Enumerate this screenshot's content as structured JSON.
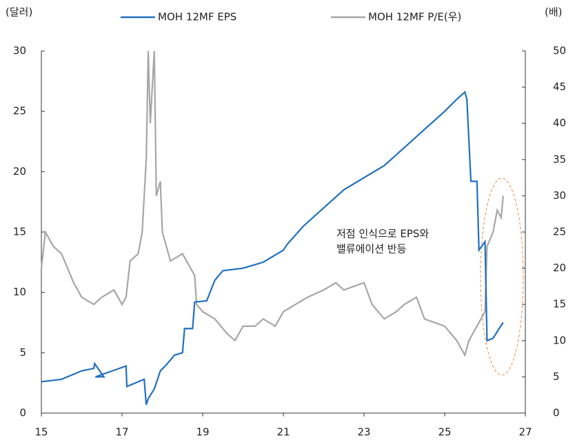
{
  "chart_data": {
    "type": "line",
    "y_label": "(달러)",
    "y2_label": "(배)",
    "annotation": [
      "저점 인식으로 EPS와",
      "밸류에이션 반등"
    ],
    "xlim": [
      15,
      27
    ],
    "xticks": [
      15,
      17,
      19,
      21,
      23,
      25,
      27
    ],
    "ylim": [
      0,
      30
    ],
    "yticks": [
      0,
      5,
      10,
      15,
      20,
      25,
      30
    ],
    "y2lim": [
      0,
      50
    ],
    "y2ticks": [
      0,
      5,
      10,
      15,
      20,
      25,
      30,
      35,
      40,
      45,
      50
    ],
    "series": [
      {
        "name": "MOH 12MF EPS",
        "color": "#1f6fc0",
        "axis": "y",
        "x": [
          15.0,
          15.5,
          16.0,
          16.3,
          16.32,
          16.55,
          16.34,
          17.1,
          17.12,
          17.55,
          17.6,
          17.65,
          17.8,
          17.95,
          18.1,
          18.3,
          18.5,
          18.55,
          18.75,
          18.8,
          19.1,
          19.3,
          19.5,
          20.0,
          20.5,
          21.0,
          21.1,
          21.5,
          22.0,
          22.5,
          23.0,
          23.5,
          24.0,
          24.5,
          25.0,
          25.3,
          25.5,
          25.55,
          25.65,
          25.8,
          25.85,
          26.0,
          26.05,
          26.2,
          26.35,
          26.45
        ],
        "values": [
          2.6,
          2.8,
          3.5,
          3.7,
          4.1,
          3.0,
          3.0,
          3.9,
          2.2,
          2.8,
          0.7,
          1.2,
          2.0,
          3.5,
          4.0,
          4.8,
          5.0,
          7.0,
          7.0,
          9.2,
          9.3,
          11.0,
          11.8,
          12.0,
          12.5,
          13.5,
          14.0,
          15.5,
          17.0,
          18.5,
          19.5,
          20.5,
          22.0,
          23.5,
          25.0,
          26.0,
          26.6,
          26.0,
          19.2,
          19.2,
          13.5,
          14.2,
          6.0,
          6.2,
          7.0,
          7.5
        ]
      },
      {
        "name": "MOH 12MF P/E(우)",
        "color": "#a6a6a6",
        "axis": "y2",
        "x": [
          15.0,
          15.1,
          15.3,
          15.5,
          15.8,
          16.0,
          16.3,
          16.5,
          16.8,
          17.0,
          17.1,
          17.2,
          17.4,
          17.5,
          17.6,
          17.65,
          17.7,
          17.8,
          17.85,
          17.95,
          18.0,
          18.2,
          18.5,
          18.8,
          18.85,
          19.0,
          19.3,
          19.6,
          19.8,
          20.0,
          20.3,
          20.5,
          20.8,
          21.0,
          21.3,
          21.6,
          22.0,
          22.3,
          22.5,
          23.0,
          23.2,
          23.5,
          23.8,
          24.0,
          24.3,
          24.5,
          25.0,
          25.3,
          25.5,
          25.6,
          25.8,
          26.0,
          26.05,
          26.2,
          26.3,
          26.4,
          26.45
        ],
        "values": [
          20,
          25,
          23,
          22,
          18,
          16,
          15,
          16,
          17,
          15,
          16,
          21,
          22,
          25,
          35,
          50,
          40,
          50,
          30,
          32,
          25,
          21,
          22,
          19,
          15,
          14,
          13,
          11,
          10,
          12,
          12,
          13,
          12,
          14,
          15,
          16,
          17,
          18,
          17,
          18,
          15,
          13,
          14,
          15,
          16,
          13,
          12,
          10,
          8,
          10,
          12,
          14,
          23,
          25,
          28,
          27,
          30
        ]
      }
    ]
  }
}
